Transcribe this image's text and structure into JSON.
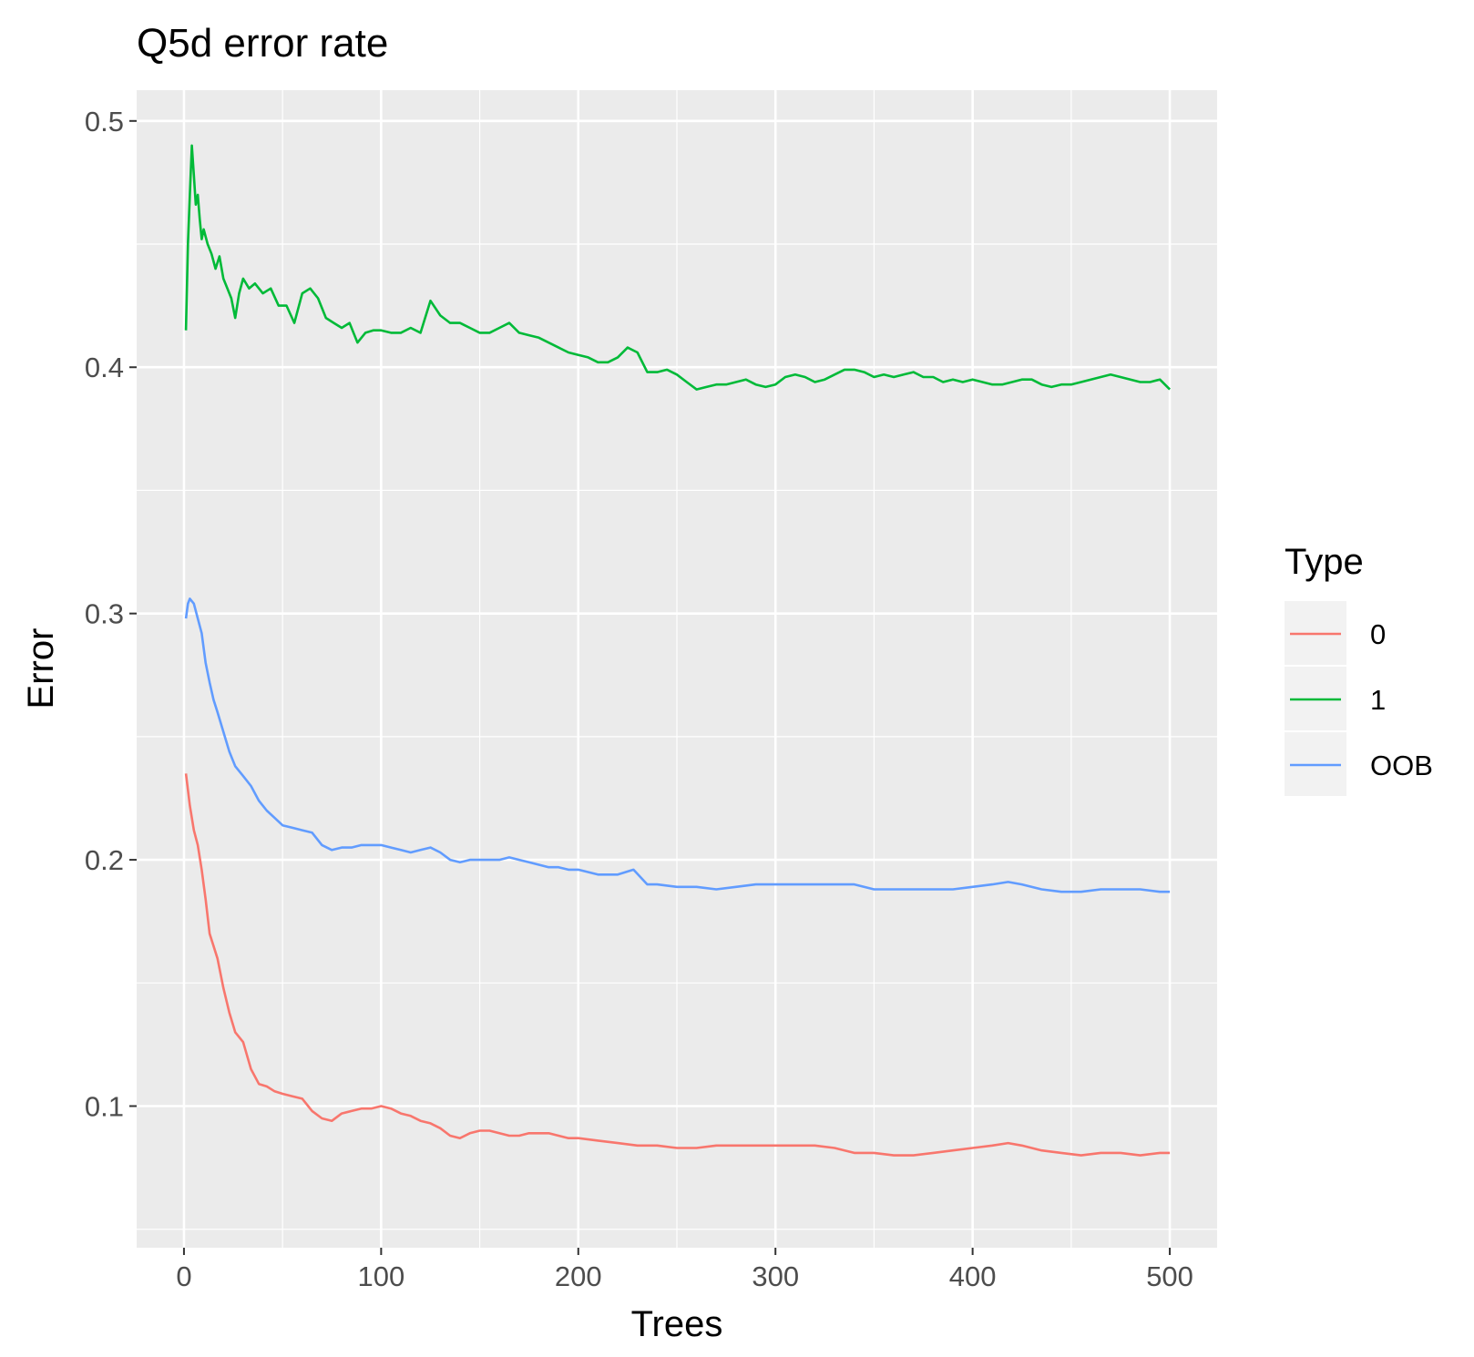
{
  "chart_data": {
    "type": "line",
    "title": "Q5d error rate",
    "xlabel": "Trees",
    "ylabel": "Error",
    "xlim": [
      -24,
      524
    ],
    "ylim": [
      0.0425,
      0.5125
    ],
    "xticks": [
      0,
      100,
      200,
      300,
      400,
      500
    ],
    "xtick_labels": [
      "0",
      "100",
      "200",
      "300",
      "400",
      "500"
    ],
    "yticks": [
      0.1,
      0.2,
      0.3,
      0.4,
      0.5
    ],
    "ytick_labels": [
      "0.1",
      "0.2",
      "0.3",
      "0.4",
      "0.5"
    ],
    "grid": true,
    "panel_background": "#ebebeb",
    "legend": {
      "title": "Type",
      "position": "right"
    },
    "series": [
      {
        "name": "0",
        "color": "#f8766d",
        "points": [
          [
            1,
            0.235
          ],
          [
            3,
            0.222
          ],
          [
            5,
            0.212
          ],
          [
            7,
            0.206
          ],
          [
            9,
            0.196
          ],
          [
            11,
            0.184
          ],
          [
            13,
            0.17
          ],
          [
            15,
            0.165
          ],
          [
            17,
            0.16
          ],
          [
            20,
            0.148
          ],
          [
            23,
            0.138
          ],
          [
            26,
            0.13
          ],
          [
            30,
            0.126
          ],
          [
            34,
            0.115
          ],
          [
            38,
            0.109
          ],
          [
            42,
            0.108
          ],
          [
            46,
            0.106
          ],
          [
            50,
            0.105
          ],
          [
            55,
            0.104
          ],
          [
            60,
            0.103
          ],
          [
            65,
            0.098
          ],
          [
            70,
            0.095
          ],
          [
            75,
            0.094
          ],
          [
            80,
            0.097
          ],
          [
            85,
            0.098
          ],
          [
            90,
            0.099
          ],
          [
            95,
            0.099
          ],
          [
            100,
            0.1
          ],
          [
            105,
            0.099
          ],
          [
            110,
            0.097
          ],
          [
            115,
            0.096
          ],
          [
            120,
            0.094
          ],
          [
            125,
            0.093
          ],
          [
            130,
            0.091
          ],
          [
            135,
            0.088
          ],
          [
            140,
            0.087
          ],
          [
            145,
            0.089
          ],
          [
            150,
            0.09
          ],
          [
            155,
            0.09
          ],
          [
            160,
            0.089
          ],
          [
            165,
            0.088
          ],
          [
            170,
            0.088
          ],
          [
            175,
            0.089
          ],
          [
            180,
            0.089
          ],
          [
            185,
            0.089
          ],
          [
            190,
            0.088
          ],
          [
            195,
            0.087
          ],
          [
            200,
            0.087
          ],
          [
            210,
            0.086
          ],
          [
            220,
            0.085
          ],
          [
            230,
            0.084
          ],
          [
            240,
            0.084
          ],
          [
            250,
            0.083
          ],
          [
            260,
            0.083
          ],
          [
            270,
            0.084
          ],
          [
            280,
            0.084
          ],
          [
            290,
            0.084
          ],
          [
            300,
            0.084
          ],
          [
            310,
            0.084
          ],
          [
            320,
            0.084
          ],
          [
            330,
            0.083
          ],
          [
            340,
            0.081
          ],
          [
            350,
            0.081
          ],
          [
            360,
            0.08
          ],
          [
            370,
            0.08
          ],
          [
            380,
            0.081
          ],
          [
            390,
            0.082
          ],
          [
            400,
            0.083
          ],
          [
            410,
            0.084
          ],
          [
            418,
            0.085
          ],
          [
            425,
            0.084
          ],
          [
            435,
            0.082
          ],
          [
            445,
            0.081
          ],
          [
            455,
            0.08
          ],
          [
            465,
            0.081
          ],
          [
            475,
            0.081
          ],
          [
            485,
            0.08
          ],
          [
            495,
            0.081
          ],
          [
            500,
            0.081
          ]
        ]
      },
      {
        "name": "1",
        "color": "#00ba38",
        "points": [
          [
            1,
            0.415
          ],
          [
            2,
            0.45
          ],
          [
            3,
            0.47
          ],
          [
            4,
            0.49
          ],
          [
            5,
            0.478
          ],
          [
            6,
            0.466
          ],
          [
            7,
            0.47
          ],
          [
            8,
            0.46
          ],
          [
            9,
            0.452
          ],
          [
            10,
            0.456
          ],
          [
            12,
            0.45
          ],
          [
            14,
            0.446
          ],
          [
            16,
            0.44
          ],
          [
            18,
            0.445
          ],
          [
            20,
            0.436
          ],
          [
            22,
            0.432
          ],
          [
            24,
            0.428
          ],
          [
            26,
            0.42
          ],
          [
            28,
            0.43
          ],
          [
            30,
            0.436
          ],
          [
            33,
            0.432
          ],
          [
            36,
            0.434
          ],
          [
            40,
            0.43
          ],
          [
            44,
            0.432
          ],
          [
            48,
            0.425
          ],
          [
            52,
            0.425
          ],
          [
            56,
            0.418
          ],
          [
            60,
            0.43
          ],
          [
            64,
            0.432
          ],
          [
            68,
            0.428
          ],
          [
            72,
            0.42
          ],
          [
            76,
            0.418
          ],
          [
            80,
            0.416
          ],
          [
            84,
            0.418
          ],
          [
            88,
            0.41
          ],
          [
            92,
            0.414
          ],
          [
            96,
            0.415
          ],
          [
            100,
            0.415
          ],
          [
            105,
            0.414
          ],
          [
            110,
            0.414
          ],
          [
            115,
            0.416
          ],
          [
            120,
            0.414
          ],
          [
            125,
            0.427
          ],
          [
            130,
            0.421
          ],
          [
            135,
            0.418
          ],
          [
            140,
            0.418
          ],
          [
            145,
            0.416
          ],
          [
            150,
            0.414
          ],
          [
            155,
            0.414
          ],
          [
            160,
            0.416
          ],
          [
            165,
            0.418
          ],
          [
            170,
            0.414
          ],
          [
            175,
            0.413
          ],
          [
            180,
            0.412
          ],
          [
            185,
            0.41
          ],
          [
            190,
            0.408
          ],
          [
            195,
            0.406
          ],
          [
            200,
            0.405
          ],
          [
            205,
            0.404
          ],
          [
            210,
            0.402
          ],
          [
            215,
            0.402
          ],
          [
            220,
            0.404
          ],
          [
            225,
            0.408
          ],
          [
            230,
            0.406
          ],
          [
            235,
            0.398
          ],
          [
            240,
            0.398
          ],
          [
            245,
            0.399
          ],
          [
            250,
            0.397
          ],
          [
            255,
            0.394
          ],
          [
            260,
            0.391
          ],
          [
            265,
            0.392
          ],
          [
            270,
            0.393
          ],
          [
            275,
            0.393
          ],
          [
            280,
            0.394
          ],
          [
            285,
            0.395
          ],
          [
            290,
            0.393
          ],
          [
            295,
            0.392
          ],
          [
            300,
            0.393
          ],
          [
            305,
            0.396
          ],
          [
            310,
            0.397
          ],
          [
            315,
            0.396
          ],
          [
            320,
            0.394
          ],
          [
            325,
            0.395
          ],
          [
            330,
            0.397
          ],
          [
            335,
            0.399
          ],
          [
            340,
            0.399
          ],
          [
            345,
            0.398
          ],
          [
            350,
            0.396
          ],
          [
            355,
            0.397
          ],
          [
            360,
            0.396
          ],
          [
            365,
            0.397
          ],
          [
            370,
            0.398
          ],
          [
            375,
            0.396
          ],
          [
            380,
            0.396
          ],
          [
            385,
            0.394
          ],
          [
            390,
            0.395
          ],
          [
            395,
            0.394
          ],
          [
            400,
            0.395
          ],
          [
            405,
            0.394
          ],
          [
            410,
            0.393
          ],
          [
            415,
            0.393
          ],
          [
            420,
            0.394
          ],
          [
            425,
            0.395
          ],
          [
            430,
            0.395
          ],
          [
            435,
            0.393
          ],
          [
            440,
            0.392
          ],
          [
            445,
            0.393
          ],
          [
            450,
            0.393
          ],
          [
            455,
            0.394
          ],
          [
            460,
            0.395
          ],
          [
            465,
            0.396
          ],
          [
            470,
            0.397
          ],
          [
            475,
            0.396
          ],
          [
            480,
            0.395
          ],
          [
            485,
            0.394
          ],
          [
            490,
            0.394
          ],
          [
            495,
            0.395
          ],
          [
            500,
            0.391
          ]
        ]
      },
      {
        "name": "OOB",
        "color": "#619cff",
        "points": [
          [
            1,
            0.298
          ],
          [
            2,
            0.304
          ],
          [
            3,
            0.306
          ],
          [
            5,
            0.304
          ],
          [
            7,
            0.298
          ],
          [
            9,
            0.292
          ],
          [
            11,
            0.28
          ],
          [
            13,
            0.272
          ],
          [
            15,
            0.265
          ],
          [
            17,
            0.26
          ],
          [
            20,
            0.252
          ],
          [
            23,
            0.244
          ],
          [
            26,
            0.238
          ],
          [
            30,
            0.234
          ],
          [
            34,
            0.23
          ],
          [
            38,
            0.224
          ],
          [
            42,
            0.22
          ],
          [
            46,
            0.217
          ],
          [
            50,
            0.214
          ],
          [
            55,
            0.213
          ],
          [
            60,
            0.212
          ],
          [
            65,
            0.211
          ],
          [
            70,
            0.206
          ],
          [
            75,
            0.204
          ],
          [
            80,
            0.205
          ],
          [
            85,
            0.205
          ],
          [
            90,
            0.206
          ],
          [
            95,
            0.206
          ],
          [
            100,
            0.206
          ],
          [
            105,
            0.205
          ],
          [
            110,
            0.204
          ],
          [
            115,
            0.203
          ],
          [
            120,
            0.204
          ],
          [
            125,
            0.205
          ],
          [
            130,
            0.203
          ],
          [
            135,
            0.2
          ],
          [
            140,
            0.199
          ],
          [
            145,
            0.2
          ],
          [
            150,
            0.2
          ],
          [
            155,
            0.2
          ],
          [
            160,
            0.2
          ],
          [
            165,
            0.201
          ],
          [
            170,
            0.2
          ],
          [
            175,
            0.199
          ],
          [
            180,
            0.198
          ],
          [
            185,
            0.197
          ],
          [
            190,
            0.197
          ],
          [
            195,
            0.196
          ],
          [
            200,
            0.196
          ],
          [
            210,
            0.194
          ],
          [
            220,
            0.194
          ],
          [
            228,
            0.196
          ],
          [
            235,
            0.19
          ],
          [
            240,
            0.19
          ],
          [
            250,
            0.189
          ],
          [
            260,
            0.189
          ],
          [
            270,
            0.188
          ],
          [
            280,
            0.189
          ],
          [
            290,
            0.19
          ],
          [
            300,
            0.19
          ],
          [
            310,
            0.19
          ],
          [
            320,
            0.19
          ],
          [
            330,
            0.19
          ],
          [
            340,
            0.19
          ],
          [
            350,
            0.188
          ],
          [
            360,
            0.188
          ],
          [
            370,
            0.188
          ],
          [
            380,
            0.188
          ],
          [
            390,
            0.188
          ],
          [
            400,
            0.189
          ],
          [
            410,
            0.19
          ],
          [
            418,
            0.191
          ],
          [
            425,
            0.19
          ],
          [
            435,
            0.188
          ],
          [
            445,
            0.187
          ],
          [
            455,
            0.187
          ],
          [
            465,
            0.188
          ],
          [
            475,
            0.188
          ],
          [
            485,
            0.188
          ],
          [
            495,
            0.187
          ],
          [
            500,
            0.187
          ]
        ]
      }
    ]
  }
}
